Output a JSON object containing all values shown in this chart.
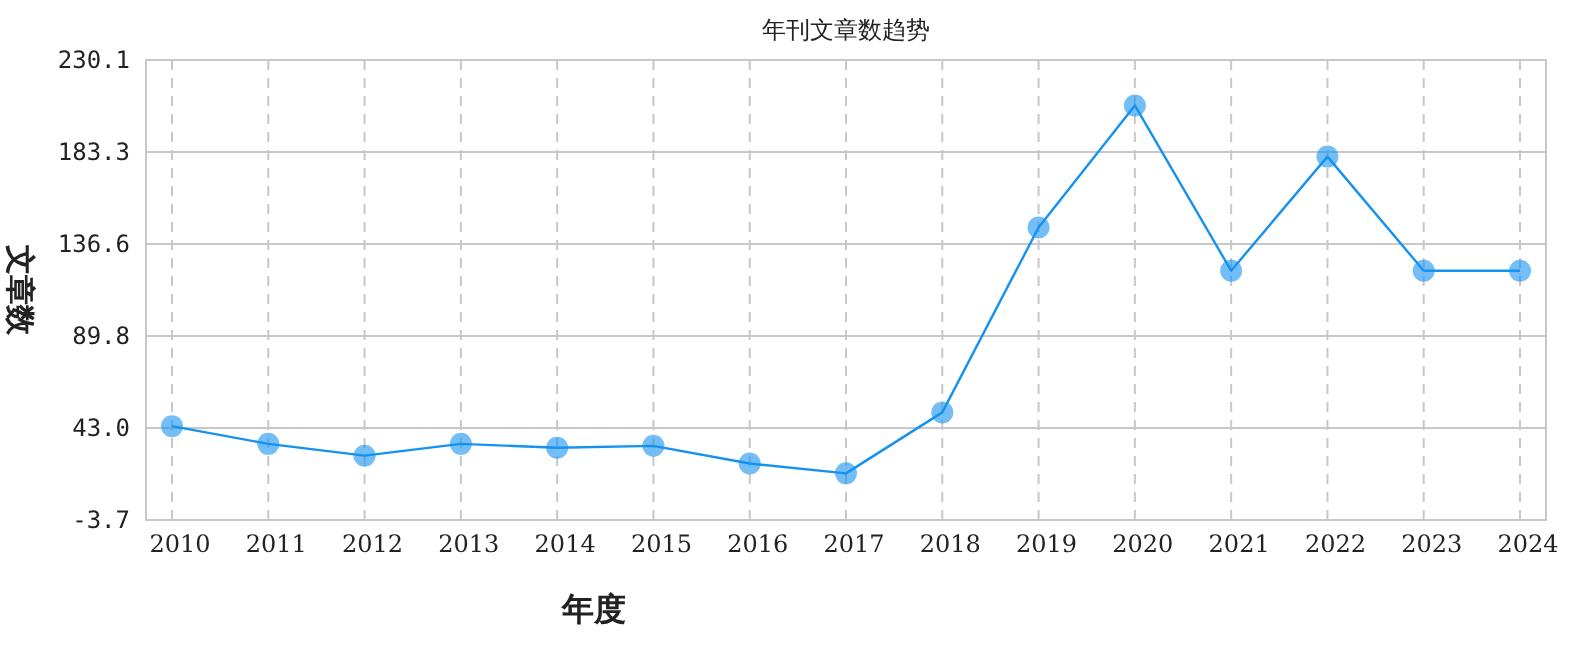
{
  "chart_data": {
    "type": "line",
    "title": "年刊文章数趋势",
    "xlabel": "年度",
    "ylabel": "文章数",
    "categories": [
      "2010",
      "2011",
      "2012",
      "2013",
      "2014",
      "2015",
      "2016",
      "2017",
      "2018",
      "2019",
      "2020",
      "2021",
      "2022",
      "2023",
      "2024"
    ],
    "series": [
      {
        "color": "#1592f0",
        "values": [
          44,
          35,
          29,
          35,
          33,
          34,
          25,
          20,
          51,
          145,
          207,
          123,
          181,
          123,
          123
        ]
      }
    ],
    "ylim": [
      -3.7,
      230.1
    ],
    "yticks": [
      -3.7,
      {
        "value": 43,
        "label": "43.0"
      },
      89.8,
      136.6,
      183.3,
      230.1
    ],
    "grid": true,
    "marker": "circle",
    "line_style": "solid"
  }
}
